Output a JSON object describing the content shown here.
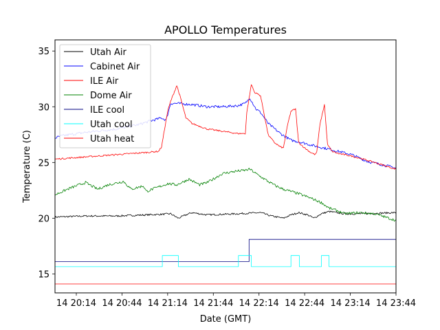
{
  "chart_data": {
    "type": "line",
    "title": "APOLLO Temperatures",
    "xlabel": "Date (GMT)",
    "ylabel": "Temperature (C)",
    "x_unit": "minutes since 14 20:00 GMT",
    "xlim": [
      0,
      224
    ],
    "ylim": [
      13.3,
      36.0
    ],
    "grid": false,
    "legend_location": "upper-left",
    "x_ticks": [
      {
        "value": 14,
        "label": "14 20:14"
      },
      {
        "value": 44,
        "label": "14 20:44"
      },
      {
        "value": 74,
        "label": "14 21:14"
      },
      {
        "value": 104,
        "label": "14 21:44"
      },
      {
        "value": 134,
        "label": "14 22:14"
      },
      {
        "value": 164,
        "label": "14 22:44"
      },
      {
        "value": 194,
        "label": "14 23:14"
      },
      {
        "value": 224,
        "label": "14 23:44"
      }
    ],
    "y_ticks": [
      15,
      20,
      25,
      30,
      35
    ],
    "series": [
      {
        "name": "Utah Air",
        "color": "#000000",
        "noise": 0.08,
        "x": [
          0,
          20,
          40,
          60,
          70,
          76,
          81,
          86,
          90,
          100,
          120,
          135,
          142,
          150,
          155,
          160,
          166,
          170,
          175,
          180,
          190,
          200,
          224
        ],
        "y": [
          20.1,
          20.2,
          20.2,
          20.3,
          20.35,
          20.4,
          20.0,
          20.3,
          20.5,
          20.3,
          20.4,
          20.5,
          20.2,
          20.0,
          20.3,
          20.5,
          20.3,
          20.0,
          20.4,
          20.6,
          20.4,
          20.4,
          20.5
        ]
      },
      {
        "name": "Cabinet Air",
        "color": "#0000ff",
        "noise": 0.12,
        "x": [
          0,
          5,
          20,
          40,
          55,
          62,
          70,
          73,
          76,
          80,
          90,
          100,
          110,
          120,
          125,
          128,
          132,
          135,
          140,
          148,
          155,
          162,
          170,
          180,
          195,
          205,
          215,
          224
        ],
        "y": [
          27.2,
          27.4,
          27.7,
          28.0,
          28.4,
          28.7,
          29.0,
          28.8,
          30.3,
          30.3,
          30.2,
          30.0,
          30.0,
          30.1,
          30.3,
          30.8,
          29.8,
          29.5,
          28.5,
          27.6,
          27.0,
          26.8,
          26.5,
          26.2,
          25.7,
          25.1,
          24.8,
          24.5
        ]
      },
      {
        "name": "ILE Air",
        "color": "#ff0000",
        "noise": 0.07,
        "x": [
          0,
          20,
          40,
          60,
          68,
          70,
          72,
          74,
          76,
          80,
          82,
          86,
          90,
          100,
          110,
          120,
          125,
          126,
          129,
          131,
          135,
          140,
          144,
          148,
          150,
          153,
          155,
          158,
          160,
          164,
          165,
          168,
          171,
          172,
          174,
          177,
          179,
          182,
          186,
          194,
          200,
          210,
          224
        ],
        "y": [
          25.3,
          25.5,
          25.7,
          25.9,
          26.0,
          26.4,
          28.0,
          29.6,
          30.5,
          31.9,
          31.0,
          29.0,
          28.5,
          28.0,
          27.8,
          27.6,
          27.6,
          29.5,
          32.0,
          31.3,
          31.0,
          27.5,
          26.8,
          26.4,
          26.3,
          28.5,
          29.6,
          29.8,
          26.8,
          26.3,
          26.2,
          25.9,
          25.7,
          26.0,
          28.4,
          30.2,
          26.6,
          26.0,
          25.8,
          25.6,
          25.4,
          25.0,
          24.4
        ]
      },
      {
        "name": "Dome Air",
        "color": "#008000",
        "noise": 0.12,
        "x": [
          0,
          10,
          20,
          28,
          35,
          45,
          50,
          58,
          60,
          68,
          74,
          80,
          88,
          95,
          100,
          105,
          110,
          118,
          125,
          128,
          132,
          140,
          145,
          150,
          160,
          168,
          175,
          180,
          185,
          190,
          200,
          210,
          224
        ],
        "y": [
          22.1,
          22.7,
          23.2,
          22.6,
          23.0,
          23.3,
          22.6,
          22.9,
          22.4,
          22.8,
          23.1,
          23.0,
          23.5,
          23.0,
          23.2,
          23.6,
          24.0,
          24.2,
          24.3,
          24.4,
          24.0,
          23.3,
          22.9,
          22.6,
          22.2,
          21.8,
          21.4,
          20.9,
          20.7,
          20.4,
          20.5,
          20.4,
          19.8
        ]
      },
      {
        "name": "ILE cool",
        "color": "#000080",
        "noise": 0,
        "step": true,
        "x": [
          0,
          127.5,
          127.5,
          224
        ],
        "y": [
          16.1,
          16.1,
          18.1,
          18.1
        ]
      },
      {
        "name": "Utah cool",
        "color": "#00ffff",
        "noise": 0,
        "step": true,
        "x": [
          0,
          70.5,
          70.5,
          81,
          81,
          120.5,
          120.5,
          129,
          129,
          155,
          155,
          160.5,
          160.5,
          175,
          175,
          180,
          180,
          224
        ],
        "y": [
          15.65,
          15.65,
          16.65,
          16.65,
          15.65,
          15.65,
          16.65,
          16.65,
          15.65,
          15.65,
          16.65,
          16.65,
          15.65,
          15.65,
          16.65,
          16.65,
          15.65,
          15.65
        ]
      },
      {
        "name": "Utah heat",
        "color": "#ff0000",
        "noise": 0,
        "x": [
          0,
          224
        ],
        "y": [
          14.1,
          14.1
        ]
      }
    ]
  }
}
